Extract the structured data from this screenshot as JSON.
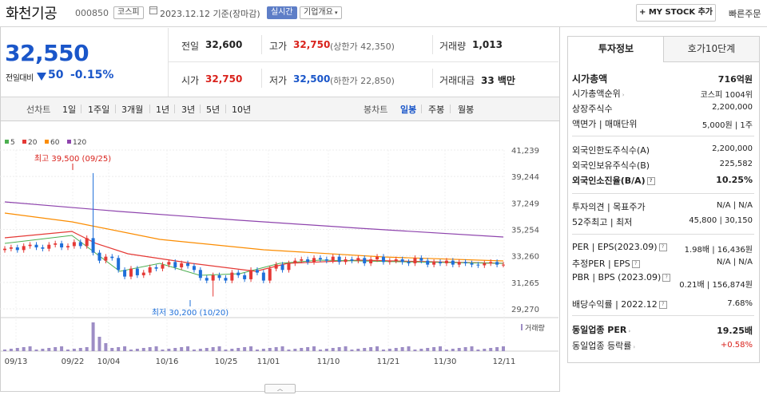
{
  "header": {
    "stock_name": "화천기공",
    "stock_code": "000850",
    "market_badge": "코스피",
    "date": "2023.12.12 기준(장마감)",
    "realtime_badge": "실시간",
    "company_overview": "기업개요",
    "mystock_label": "+ MY STOCK 추가",
    "quick_order": "빠른주문"
  },
  "price": {
    "current": "32,550",
    "change_label": "전일대비",
    "change": "50",
    "change_pct": "-0.15%"
  },
  "quote": {
    "prev_close_label": "전일",
    "prev_close": "32,600",
    "high_label": "고가",
    "high": "32,750",
    "upper_limit": "(상한가 42,350)",
    "volume_label": "거래량",
    "volume": "1,013",
    "open_label": "시가",
    "open": "32,750",
    "low_label": "저가",
    "low": "32,500",
    "lower_limit": "(하한가 22,850)",
    "amount_label": "거래대금",
    "amount": "33 백만"
  },
  "period": {
    "line_label": "선차트",
    "line_items": [
      "1일",
      "1주일",
      "3개월",
      "1년",
      "3년",
      "5년",
      "10년"
    ],
    "candle_label": "봉차트",
    "candle_items": [
      "일봉",
      "주봉",
      "월봉"
    ],
    "selected_candle": "일봉"
  },
  "chart_data": {
    "type": "candlestick",
    "legend": [
      {
        "name": "5",
        "color": "#4caf50"
      },
      {
        "name": "20",
        "color": "#e53935"
      },
      {
        "name": "60",
        "color": "#fb8c00"
      },
      {
        "name": "120",
        "color": "#8e44ad"
      }
    ],
    "y_ticks": [
      "41,239",
      "39,244",
      "37,249",
      "35,254",
      "33,260",
      "31,265",
      "29,270"
    ],
    "ylim": [
      29270,
      41239
    ],
    "x_ticks": [
      "09/13",
      "09/22",
      "10/04",
      "10/16",
      "10/25",
      "11/01",
      "11/10",
      "11/21",
      "11/30",
      "12/11"
    ],
    "high_annotation": "최고 39,500 (09/25)",
    "low_annotation": "최저 30,200 (10/20)",
    "volume_label": "거래량",
    "up_color": "#e53935",
    "down_color": "#1e6fd9"
  },
  "tabs": {
    "info": "투자정보",
    "hoga": "호가10단계"
  },
  "info": {
    "market_cap_label": "시가총액",
    "market_cap": "716억원",
    "cap_rank_label": "시가총액순위",
    "cap_rank": "코스피 1004위",
    "shares_label": "상장주식수",
    "shares": "2,200,000",
    "par_label": "액면가 | 매매단위",
    "par": "5,000원 | 1주",
    "foreign_limit_label": "외국인한도주식수(A)",
    "foreign_limit": "2,200,000",
    "foreign_hold_label": "외국인보유주식수(B)",
    "foreign_hold": "225,582",
    "foreign_ratio_label": "외국인소진율(B/A)",
    "foreign_ratio": "10.25%",
    "opinion_label": "투자의견 | 목표주가",
    "opinion": "N/A | N/A",
    "w52_label": "52주최고 | 최저",
    "w52": "45,800 | 30,150",
    "per_label": "PER | EPS(2023.09)",
    "per": "1.98배 | 16,436원",
    "est_per_label": "추정PER | EPS",
    "est_per": "N/A | N/A",
    "pbr_label": "PBR | BPS (2023.09)",
    "pbr": "0.21배 | 156,874원",
    "div_label": "배당수익률 | 2022.12",
    "div": "7.68%",
    "ind_per_label": "동일업종 PER",
    "ind_per": "19.25배",
    "ind_rate_label": "동일업종 등락률",
    "ind_rate": "+0.58%"
  }
}
